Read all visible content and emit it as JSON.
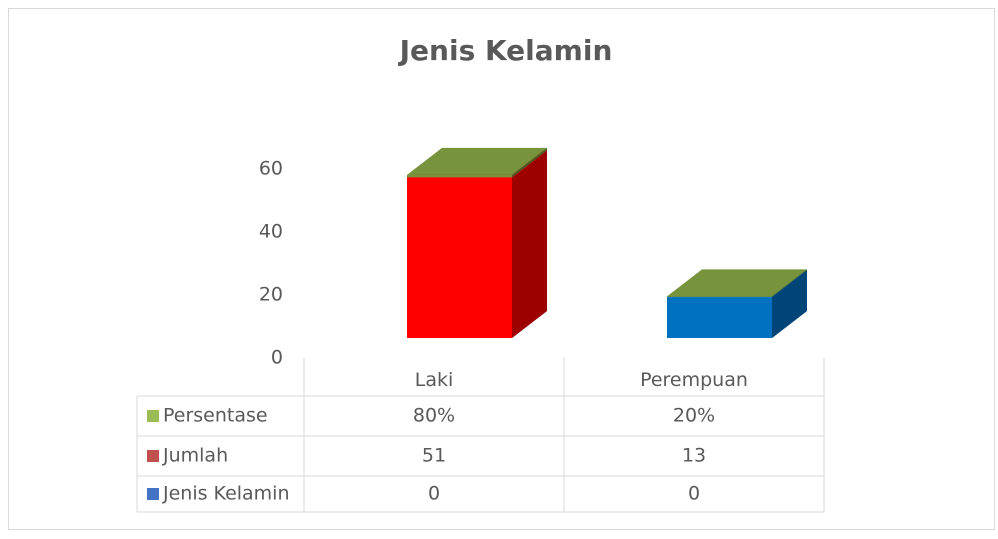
{
  "chart_data": {
    "type": "bar3d_stacked",
    "title": "Jenis Kelamin",
    "categories": [
      "Laki",
      "Perempuan"
    ],
    "series": [
      {
        "name": "Jenis Kelamin",
        "color": "#4472c4",
        "values": [
          0,
          0
        ]
      },
      {
        "name": "Jumlah",
        "color": "#c0504d",
        "point_colors": [
          "#ff0000",
          "#0070c0"
        ],
        "values": [
          51,
          13
        ]
      },
      {
        "name": "Persentase",
        "color": "#9bbb59",
        "point_colors": [
          "#77933c",
          "#77933c"
        ],
        "values": [
          0.8,
          0.2
        ],
        "value_labels": [
          "80%",
          "20%"
        ]
      }
    ],
    "ylim": [
      0,
      70
    ],
    "yticks": [
      0,
      20,
      40,
      60
    ],
    "grid": false,
    "data_table": true
  }
}
